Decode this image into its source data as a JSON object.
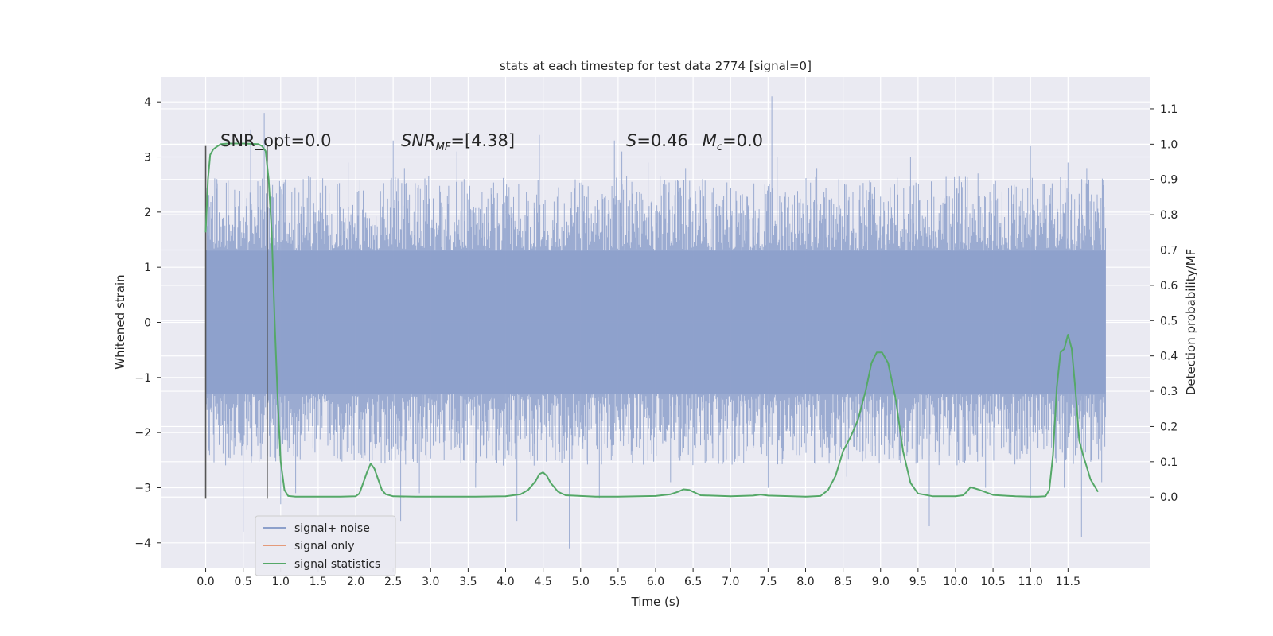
{
  "chart_data": {
    "type": "line",
    "title": "stats at each timestep for test data 2774 [signal=0]",
    "xlabel": "Time (s)",
    "ylabel": "Whitened strain",
    "ylabel_right": "Detection probability/MF",
    "xlim": [
      -0.6,
      12.6
    ],
    "ylim": [
      -4.45,
      4.45
    ],
    "ylim_right": [
      -0.2,
      1.19
    ],
    "x_ticks": [
      "0.0",
      "0.5",
      "1.0",
      "1.5",
      "2.0",
      "2.5",
      "3.0",
      "3.5",
      "4.0",
      "4.5",
      "5.0",
      "5.5",
      "6.0",
      "6.5",
      "7.0",
      "7.5",
      "8.0",
      "8.5",
      "9.0",
      "9.5",
      "10.0",
      "10.5",
      "11.0",
      "11.5"
    ],
    "y_ticks": [
      "4",
      "3",
      "2",
      "1",
      "0",
      "−1",
      "−2",
      "−3",
      "−4"
    ],
    "y_ticks_right": [
      "1.1",
      "1.0",
      "0.9",
      "0.8",
      "0.7",
      "0.6",
      "0.5",
      "0.4",
      "0.3",
      "0.2",
      "0.1",
      "0.0"
    ],
    "grid": true,
    "legend_position": "lower-left",
    "annotations": [
      {
        "text": "SNR_opt=0.0",
        "x": 0.2,
        "y": 3.3
      },
      {
        "text": "SNR_MF=[4.38]",
        "x": 2.6,
        "y": 3.3
      },
      {
        "text": "S=0.46   M_c=0.0",
        "x": 5.6,
        "y": 3.3
      }
    ],
    "vertical_markers": [
      {
        "x": 0.0,
        "y_range": [
          -3.2,
          3.2
        ]
      },
      {
        "x": 0.82,
        "y_range": [
          -3.2,
          3.2
        ]
      }
    ],
    "series": [
      {
        "name": "signal+ noise",
        "color": "#8da0cb",
        "axis": "left",
        "x_range": [
          0.0,
          12.0
        ],
        "core_band": [
          -1.3,
          1.3
        ],
        "upper_spikes": [
          [
            0.05,
            2.1
          ],
          [
            0.15,
            2.6
          ],
          [
            0.35,
            2.2
          ],
          [
            0.6,
            3.5
          ],
          [
            0.78,
            3.8
          ],
          [
            1.3,
            2.6
          ],
          [
            1.9,
            2.9
          ],
          [
            2.5,
            3.3
          ],
          [
            2.65,
            2.8
          ],
          [
            3.35,
            3.1
          ],
          [
            4.45,
            3.4
          ],
          [
            5.45,
            3.3
          ],
          [
            5.55,
            3.1
          ],
          [
            5.9,
            2.9
          ],
          [
            6.4,
            2.8
          ],
          [
            7.55,
            4.1
          ],
          [
            7.62,
            3.0
          ],
          [
            8.15,
            2.8
          ],
          [
            8.7,
            3.5
          ],
          [
            9.4,
            3.0
          ],
          [
            10.3,
            2.7
          ],
          [
            11.0,
            3.2
          ],
          [
            11.5,
            2.9
          ],
          [
            11.75,
            2.8
          ]
        ],
        "lower_spikes": [
          [
            0.0,
            -3.0
          ],
          [
            0.5,
            -3.8
          ],
          [
            1.0,
            -3.3
          ],
          [
            1.2,
            -3.1
          ],
          [
            2.6,
            -3.6
          ],
          [
            2.85,
            -3.1
          ],
          [
            3.6,
            -3.0
          ],
          [
            4.15,
            -3.6
          ],
          [
            4.85,
            -4.1
          ],
          [
            5.25,
            -3.2
          ],
          [
            6.2,
            -2.9
          ],
          [
            7.5,
            -3.0
          ],
          [
            8.55,
            -2.8
          ],
          [
            9.65,
            -3.7
          ],
          [
            10.4,
            -3.0
          ],
          [
            11.0,
            -3.2
          ],
          [
            11.45,
            -3.0
          ],
          [
            11.68,
            -3.9
          ],
          [
            11.95,
            -2.9
          ]
        ]
      },
      {
        "name": "signal only",
        "color": "#e49a7a",
        "axis": "left",
        "points": []
      },
      {
        "name": "signal statistics",
        "color": "#55a868",
        "axis": "right",
        "x": [
          0.0,
          0.03,
          0.06,
          0.1,
          0.15,
          0.2,
          0.3,
          0.4,
          0.5,
          0.6,
          0.7,
          0.75,
          0.8,
          0.84,
          0.88,
          0.92,
          0.96,
          1.0,
          1.05,
          1.1,
          1.2,
          1.4,
          1.6,
          1.8,
          2.0,
          2.05,
          2.1,
          2.15,
          2.2,
          2.25,
          2.3,
          2.35,
          2.4,
          2.5,
          2.8,
          3.2,
          3.6,
          4.0,
          4.2,
          4.3,
          4.4,
          4.45,
          4.5,
          4.55,
          4.6,
          4.7,
          4.8,
          5.0,
          5.2,
          5.5,
          6.0,
          6.2,
          6.3,
          6.37,
          6.45,
          6.6,
          7.0,
          7.3,
          7.4,
          7.5,
          8.0,
          8.2,
          8.3,
          8.4,
          8.5,
          8.6,
          8.7,
          8.8,
          8.88,
          8.95,
          9.02,
          9.1,
          9.2,
          9.3,
          9.4,
          9.5,
          9.7,
          10.0,
          10.1,
          10.15,
          10.2,
          10.3,
          10.5,
          10.8,
          11.0,
          11.1,
          11.2,
          11.25,
          11.3,
          11.35,
          11.4,
          11.45,
          11.5,
          11.55,
          11.6,
          11.65,
          11.7,
          11.8,
          11.9
        ],
        "values": [
          0.75,
          0.9,
          0.97,
          0.985,
          0.993,
          1.0,
          1.002,
          1.002,
          1.002,
          1.001,
          1.0,
          0.995,
          0.98,
          0.9,
          0.75,
          0.5,
          0.28,
          0.1,
          0.02,
          0.003,
          0.001,
          0.001,
          0.001,
          0.001,
          0.002,
          0.01,
          0.04,
          0.07,
          0.095,
          0.08,
          0.05,
          0.02,
          0.008,
          0.002,
          0.001,
          0.001,
          0.001,
          0.002,
          0.008,
          0.02,
          0.045,
          0.065,
          0.07,
          0.06,
          0.04,
          0.015,
          0.005,
          0.003,
          0.001,
          0.001,
          0.003,
          0.008,
          0.015,
          0.022,
          0.02,
          0.005,
          0.002,
          0.004,
          0.007,
          0.004,
          0.001,
          0.003,
          0.02,
          0.06,
          0.13,
          0.17,
          0.22,
          0.3,
          0.38,
          0.41,
          0.41,
          0.38,
          0.28,
          0.13,
          0.04,
          0.01,
          0.002,
          0.002,
          0.005,
          0.015,
          0.028,
          0.022,
          0.006,
          0.002,
          0.001,
          0.001,
          0.002,
          0.02,
          0.12,
          0.31,
          0.41,
          0.42,
          0.46,
          0.42,
          0.3,
          0.16,
          0.12,
          0.05,
          0.015
        ]
      }
    ]
  }
}
